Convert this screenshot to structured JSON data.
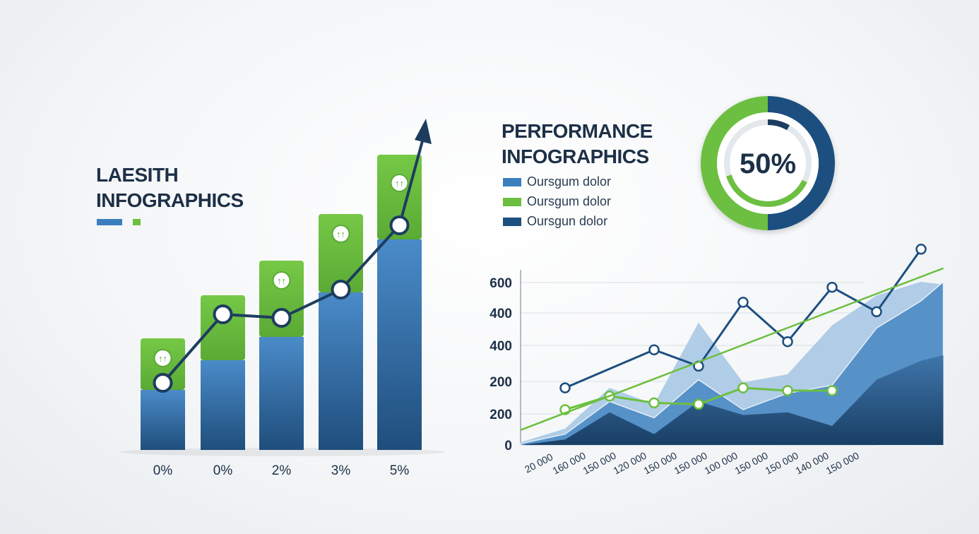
{
  "colors": {
    "blue": "#3c7fbf",
    "dark_navy": "#1d3d5e",
    "green": "#6cbf3f",
    "light_blue": "#a8c8e4",
    "title": "#1d3047"
  },
  "left_chart": {
    "title_lines": [
      "LAESITH",
      "INFOGRAPHICS"
    ]
  },
  "right_chart": {
    "title_lines": [
      "PERFORMANCE",
      "INFOGRAPHICS"
    ],
    "legend": [
      {
        "label": "Oursgum dolor",
        "color": "#3c7fbf"
      },
      {
        "label": "Oursgum dolor",
        "color": "#6cbf3f"
      },
      {
        "label": "Oursgun dolor",
        "color": "#1d4f80"
      }
    ]
  },
  "donut": {
    "label": "50%",
    "value": 50
  },
  "chart_data": [
    {
      "type": "bar",
      "stacked": true,
      "categories": [
        "0%",
        "0%",
        "2%",
        "3%",
        "5%"
      ],
      "series": [
        {
          "values": [
            85,
            127,
            160,
            223,
            298
          ]
        },
        {
          "values": [
            73,
            92,
            108,
            111,
            120
          ]
        }
      ],
      "line_values": [
        95,
        192,
        187,
        227,
        318
      ],
      "bar_icons": [
        "↑↑",
        "",
        "↑↑",
        "↑↑",
        "↑↑"
      ],
      "ylim": [
        0,
        450
      ],
      "grid": false,
      "trend_arrow": true
    },
    {
      "type": "line",
      "y_tick_labels": [
        "0",
        "200",
        "200",
        "400",
        "400",
        "600"
      ],
      "x_tick_labels": [
        "20 000",
        "160 000",
        "150 000",
        "120 000",
        "150 000",
        "150 000",
        "100 000",
        "150 000",
        "150 000",
        "140 000",
        "150 000"
      ],
      "ylim": [
        0,
        650
      ],
      "grid": true,
      "series": [
        {
          "kind": "line",
          "color": "#1d4f80",
          "markers": true,
          "x": [
            1,
            3,
            4,
            5,
            6,
            7,
            8,
            9
          ],
          "y": [
            210,
            350,
            290,
            525,
            380,
            580,
            490,
            720
          ]
        },
        {
          "kind": "line",
          "color": "#6cbf3f",
          "markers": true,
          "x": [
            1,
            2,
            3,
            4,
            5,
            6,
            7
          ],
          "y": [
            130,
            180,
            155,
            150,
            210,
            200,
            200
          ]
        },
        {
          "kind": "line",
          "color": "#6cbf3f",
          "markers": false,
          "x": [
            0,
            9.5
          ],
          "y": [
            55,
            650
          ]
        },
        {
          "kind": "area",
          "color": "#a8c8e4",
          "x": [
            0,
            1,
            2,
            3,
            4,
            5,
            6,
            7,
            8,
            9,
            9.5
          ],
          "y": [
            10,
            60,
            210,
            150,
            450,
            230,
            260,
            440,
            550,
            600,
            590
          ]
        },
        {
          "kind": "area",
          "color": "#4f8cc6",
          "x": [
            0,
            1,
            2,
            3,
            4,
            5,
            6,
            7,
            8,
            9,
            9.5
          ],
          "y": [
            5,
            40,
            160,
            100,
            240,
            130,
            190,
            220,
            430,
            530,
            600
          ]
        },
        {
          "kind": "area",
          "color": "#1d4f80",
          "x": [
            0,
            1,
            2,
            3,
            4,
            5,
            6,
            7,
            8,
            9,
            9.5
          ],
          "y": [
            0,
            20,
            120,
            40,
            160,
            110,
            120,
            70,
            240,
            310,
            330
          ]
        }
      ]
    }
  ]
}
